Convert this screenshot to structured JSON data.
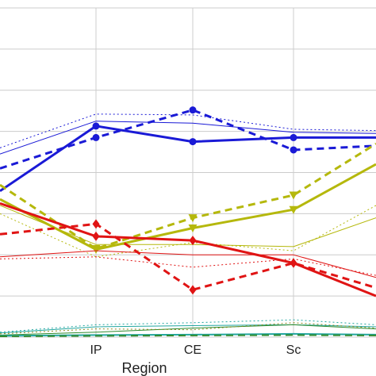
{
  "chart_data": {
    "type": "line",
    "xlabel": "Region",
    "ylabel": "",
    "categories": [
      "",
      "IP",
      "CE",
      "Sc",
      ""
    ],
    "ylim": [
      0,
      8
    ],
    "grid": true,
    "colors": {
      "blue": "#1a1ad6",
      "yellow": "#b5b80c",
      "red": "#e01414",
      "green": "#2e8b2e",
      "teal": "#22a6a0",
      "olive": "#8a8a1a",
      "grid": "#cccccc"
    },
    "series": [
      {
        "color": "blue",
        "style": "solid",
        "width": 3,
        "marker": "circle",
        "values": [
          3.55,
          5.13,
          4.75,
          4.85,
          4.85
        ]
      },
      {
        "color": "blue",
        "style": "dashed",
        "width": 3,
        "marker": "circle",
        "values": [
          4.1,
          4.85,
          5.52,
          4.55,
          4.65
        ]
      },
      {
        "color": "blue",
        "style": "solid",
        "width": 1,
        "marker": "none",
        "values": [
          4.45,
          5.25,
          5.2,
          4.98,
          4.95
        ]
      },
      {
        "color": "blue",
        "style": "dotted",
        "width": 1,
        "marker": "none",
        "values": [
          4.6,
          5.42,
          5.4,
          5.05,
          5.02
        ]
      },
      {
        "color": "yellow",
        "style": "solid",
        "width": 3,
        "marker": "triangle",
        "values": [
          3.35,
          2.13,
          2.65,
          3.1,
          4.2
        ]
      },
      {
        "color": "yellow",
        "style": "dashed",
        "width": 3,
        "marker": "triangle",
        "values": [
          3.7,
          2.15,
          2.9,
          3.45,
          4.7
        ]
      },
      {
        "color": "yellow",
        "style": "solid",
        "width": 1,
        "marker": "none",
        "values": [
          3.2,
          2.25,
          2.25,
          2.2,
          2.9
        ]
      },
      {
        "color": "yellow",
        "style": "dotted",
        "width": 1,
        "marker": "none",
        "values": [
          3.0,
          1.95,
          2.3,
          2.1,
          3.2
        ]
      },
      {
        "color": "red",
        "style": "solid",
        "width": 3,
        "marker": "diamond",
        "values": [
          3.25,
          2.45,
          2.35,
          1.8,
          1.0
        ]
      },
      {
        "color": "red",
        "style": "dashed",
        "width": 3,
        "marker": "diamond",
        "values": [
          2.5,
          2.75,
          1.15,
          1.8,
          1.2
        ]
      },
      {
        "color": "red",
        "style": "solid",
        "width": 1,
        "marker": "none",
        "values": [
          1.95,
          2.1,
          2.0,
          2.0,
          1.45
        ]
      },
      {
        "color": "red",
        "style": "dotted",
        "width": 1,
        "marker": "none",
        "values": [
          1.9,
          1.95,
          1.7,
          1.9,
          1.5
        ]
      },
      {
        "color": "teal",
        "style": "solid",
        "width": 1,
        "marker": "none",
        "values": [
          0.1,
          0.25,
          0.28,
          0.3,
          0.25
        ]
      },
      {
        "color": "teal",
        "style": "dotted",
        "width": 1,
        "marker": "none",
        "values": [
          0.12,
          0.3,
          0.35,
          0.42,
          0.3
        ]
      },
      {
        "color": "green",
        "style": "solid",
        "width": 1,
        "marker": "none",
        "values": [
          0.05,
          0.12,
          0.22,
          0.3,
          0.2
        ]
      },
      {
        "color": "olive",
        "style": "dotted",
        "width": 1,
        "marker": "none",
        "values": [
          0.08,
          0.2,
          0.18,
          0.35,
          0.22
        ]
      },
      {
        "color": "teal",
        "style": "solid",
        "width": 2,
        "marker": "none",
        "values": [
          0.03,
          0.05,
          0.06,
          0.08,
          0.06
        ]
      },
      {
        "color": "green",
        "style": "dashed",
        "width": 2,
        "marker": "none",
        "values": [
          0.02,
          0.03,
          0.04,
          0.05,
          0.04
        ]
      }
    ]
  }
}
